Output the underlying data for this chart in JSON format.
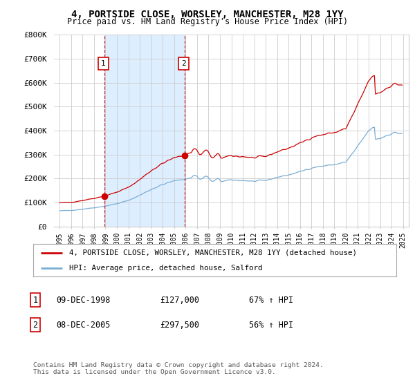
{
  "title": "4, PORTSIDE CLOSE, WORSLEY, MANCHESTER, M28 1YY",
  "subtitle": "Price paid vs. HM Land Registry's House Price Index (HPI)",
  "ylabel_ticks": [
    "£0",
    "£100K",
    "£200K",
    "£300K",
    "£400K",
    "£500K",
    "£600K",
    "£700K",
    "£800K"
  ],
  "ytick_vals": [
    0,
    100000,
    200000,
    300000,
    400000,
    500000,
    600000,
    700000,
    800000
  ],
  "ylim": [
    0,
    800000
  ],
  "legend_line1": "4, PORTSIDE CLOSE, WORSLEY, MANCHESTER, M28 1YY (detached house)",
  "legend_line2": "HPI: Average price, detached house, Salford",
  "annotation1_date": "09-DEC-1998",
  "annotation1_price": "£127,000",
  "annotation1_hpi": "67% ↑ HPI",
  "annotation2_date": "08-DEC-2005",
  "annotation2_price": "£297,500",
  "annotation2_hpi": "56% ↑ HPI",
  "footer": "Contains HM Land Registry data © Crown copyright and database right 2024.\nThis data is licensed under the Open Government Licence v3.0.",
  "line_color_red": "#cc0000",
  "line_color_blue": "#7aadd4",
  "shade_color": "#ddeeff",
  "background_color": "#ffffff",
  "grid_color": "#cccccc",
  "sale1_x": 1998.92,
  "sale1_y": 127000,
  "sale2_x": 2005.92,
  "sale2_y": 297500,
  "xlim_left": 1994.5,
  "xlim_right": 2025.5
}
